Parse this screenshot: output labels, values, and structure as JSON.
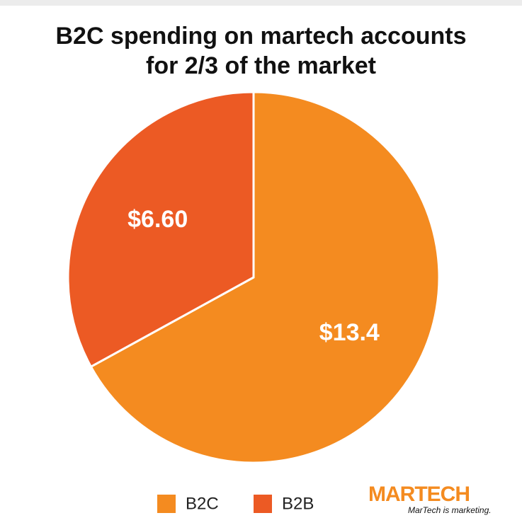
{
  "chart_data": {
    "type": "pie",
    "title": "B2C spending on martech accounts for 2/3 of the market",
    "categories": [
      "B2C",
      "B2B"
    ],
    "values": [
      13.4,
      6.6
    ],
    "value_labels": [
      "$13.4",
      "$6.60"
    ],
    "colors": [
      "#f48b20",
      "#ec5a24"
    ]
  },
  "logo": {
    "name": "MARTECH",
    "tagline": "MarTech is marketing."
  }
}
